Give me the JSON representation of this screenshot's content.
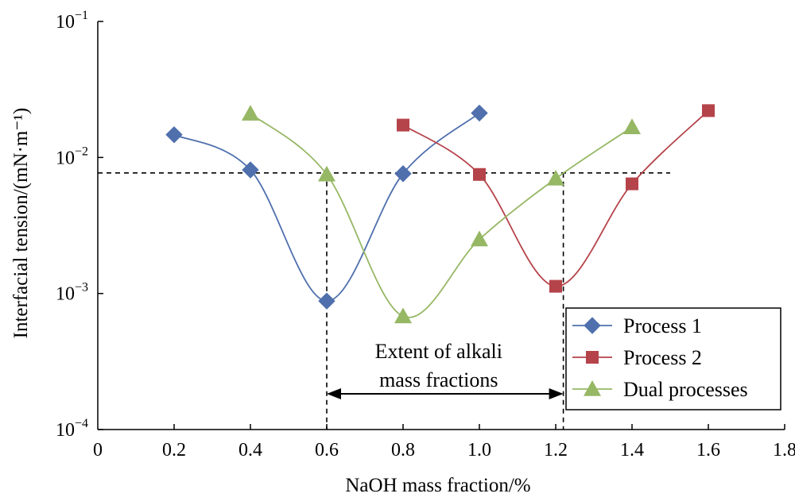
{
  "chart_data": {
    "type": "line",
    "xlabel": "NaOH mass fraction/%",
    "ylabel": "Interfacial tension/(mN·m⁻¹)",
    "xlim": [
      0,
      1.8
    ],
    "ylim": [
      0.0001,
      0.1
    ],
    "yscale": "log",
    "grid": false,
    "legend_position": "bottom-right",
    "x_ticks": [
      "0",
      "0.2",
      "0.4",
      "0.6",
      "0.8",
      "1.0",
      "1.2",
      "1.4",
      "1.6",
      "1.8"
    ],
    "y_ticks": [
      {
        "value": 0.0001,
        "base": "10",
        "exp": "−4"
      },
      {
        "value": 0.001,
        "base": "10",
        "exp": "−3"
      },
      {
        "value": 0.01,
        "base": "10",
        "exp": "−2"
      },
      {
        "value": 0.1,
        "base": "10",
        "exp": "−1"
      }
    ],
    "series": [
      {
        "name": "Process 1",
        "color": "#4f6fad",
        "marker": "diamond",
        "x": [
          0.2,
          0.4,
          0.6,
          0.8,
          1.0
        ],
        "y": [
          0.0147,
          0.0081,
          0.00088,
          0.0076,
          0.0212
        ]
      },
      {
        "name": "Process 2",
        "color": "#b5434a",
        "marker": "square",
        "x": [
          0.8,
          1.0,
          1.2,
          1.4,
          1.6
        ],
        "y": [
          0.0173,
          0.0075,
          0.00113,
          0.0064,
          0.0221
        ]
      },
      {
        "name": "Dual processes",
        "color": "#96b764",
        "marker": "triangle",
        "x": [
          0.4,
          0.6,
          0.8,
          1.0,
          1.2,
          1.4
        ],
        "y": [
          0.021,
          0.0075,
          0.00068,
          0.0025,
          0.007,
          0.0167
        ]
      }
    ],
    "reference_line": {
      "y": 0.0077,
      "x_range": [
        0,
        1.5
      ]
    },
    "vertical_markers": [
      0.6,
      1.22
    ],
    "annotation": {
      "lines": [
        "Extent of alkali",
        "mass fractions"
      ],
      "x_from": 0.6,
      "x_to": 1.22
    }
  }
}
